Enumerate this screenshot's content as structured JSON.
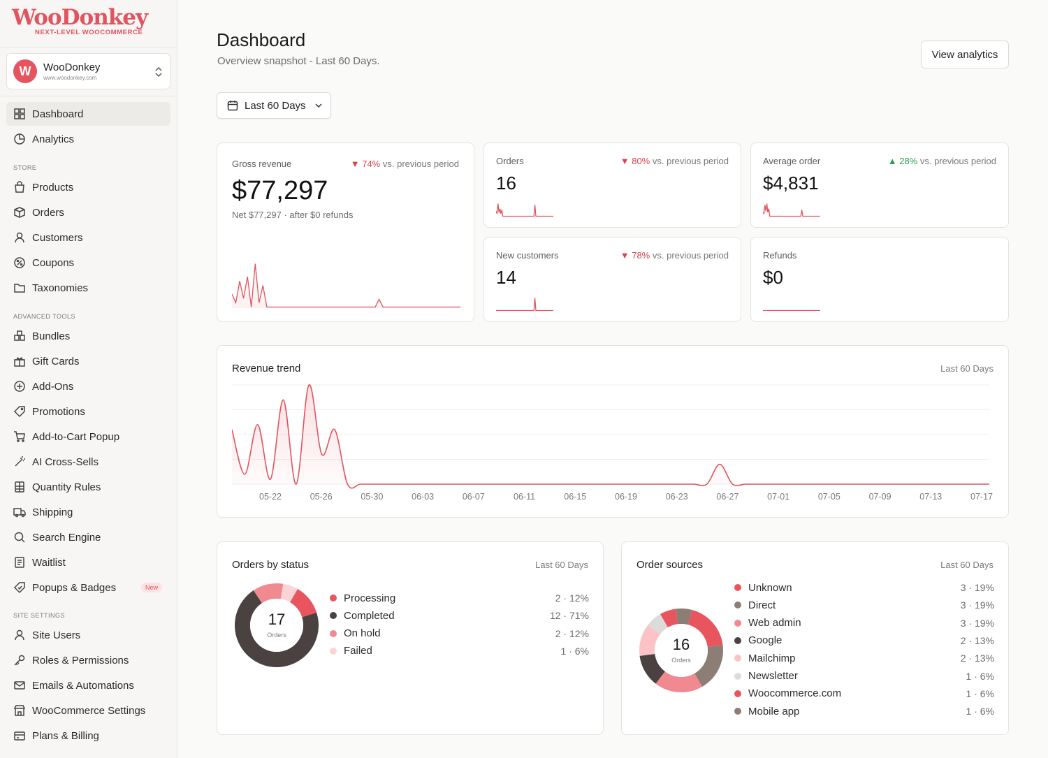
{
  "brand": {
    "logo": "WooDonkey",
    "tagline": "NEXT-LEVEL WOOCOMMERCE",
    "accent": "#e0545f"
  },
  "store": {
    "avatar": "W",
    "name": "WooDonkey",
    "url": "www.woodonkey.com"
  },
  "nav": {
    "top": [
      {
        "label": "Dashboard",
        "icon": "grid-icon",
        "active": true
      },
      {
        "label": "Analytics",
        "icon": "analytics-icon"
      }
    ],
    "store_label": "STORE",
    "store": [
      {
        "label": "Products",
        "icon": "bag-icon"
      },
      {
        "label": "Orders",
        "icon": "box-icon"
      },
      {
        "label": "Customers",
        "icon": "user-icon"
      },
      {
        "label": "Coupons",
        "icon": "percent-icon"
      },
      {
        "label": "Taxonomies",
        "icon": "folder-icon"
      }
    ],
    "tools_label": "ADVANCED TOOLS",
    "tools": [
      {
        "label": "Bundles",
        "icon": "bundle-icon"
      },
      {
        "label": "Gift Cards",
        "icon": "gift-icon"
      },
      {
        "label": "Add-Ons",
        "icon": "plus-circle-icon"
      },
      {
        "label": "Promotions",
        "icon": "tag-icon"
      },
      {
        "label": "Add-to-Cart Popup",
        "icon": "cart-icon"
      },
      {
        "label": "AI Cross-Sells",
        "icon": "wand-icon"
      },
      {
        "label": "Quantity Rules",
        "icon": "calculator-icon"
      },
      {
        "label": "Shipping",
        "icon": "truck-icon"
      },
      {
        "label": "Search Engine",
        "icon": "search-icon"
      },
      {
        "label": "Waitlist",
        "icon": "list-icon"
      },
      {
        "label": "Popups & Badges",
        "icon": "badge-icon",
        "badge": "New"
      }
    ],
    "site_label": "SITE SETTINGS",
    "site": [
      {
        "label": "Site Users",
        "icon": "user-icon"
      },
      {
        "label": "Roles & Permissions",
        "icon": "key-icon"
      },
      {
        "label": "Emails & Automations",
        "icon": "mail-icon"
      },
      {
        "label": "WooCommerce Settings",
        "icon": "store-icon"
      },
      {
        "label": "Plans & Billing",
        "icon": "billing-icon"
      }
    ]
  },
  "header": {
    "title": "Dashboard",
    "subtitle": "Overview snapshot - Last 60 Days.",
    "analytics_button": "View analytics",
    "date_range": "Last 60 Days"
  },
  "kpis": {
    "gross": {
      "label": "Gross revenue",
      "delta_pct": "74%",
      "delta_dir": "down",
      "delta_text": "vs. previous period",
      "value": "$77,297",
      "note": "Net $77,297 · after $0 refunds"
    },
    "orders": {
      "label": "Orders",
      "delta_pct": "80%",
      "delta_dir": "down",
      "delta_text": "vs. previous period",
      "value": "16"
    },
    "avg": {
      "label": "Average order",
      "delta_pct": "28%",
      "delta_dir": "up",
      "delta_text": "vs. previous period",
      "value": "$4,831"
    },
    "newcust": {
      "label": "New customers",
      "delta_pct": "78%",
      "delta_dir": "down",
      "delta_text": "vs. previous period",
      "value": "14"
    },
    "refunds": {
      "label": "Refunds",
      "value": "$0"
    }
  },
  "revenue_trend": {
    "title": "Revenue trend",
    "period": "Last 60 Days"
  },
  "orders_status": {
    "title": "Orders by status",
    "period": "Last 60 Days",
    "total": "17",
    "total_label": "Orders",
    "items": [
      {
        "label": "Processing",
        "value": "2 · 12%",
        "color": "#e9555f",
        "count": 2
      },
      {
        "label": "Completed",
        "value": "12 · 71%",
        "color": "#4a4240",
        "count": 12
      },
      {
        "label": "On hold",
        "value": "2 · 12%",
        "color": "#f08a90",
        "count": 2
      },
      {
        "label": "Failed",
        "value": "1 · 6%",
        "color": "#fad4d6",
        "count": 1
      }
    ]
  },
  "order_sources": {
    "title": "Order sources",
    "period": "Last 60 Days",
    "total": "16",
    "total_label": "Orders",
    "items": [
      {
        "label": "Unknown",
        "value": "3 · 19%",
        "color": "#e9555f",
        "count": 3
      },
      {
        "label": "Direct",
        "value": "3 · 19%",
        "color": "#8c7d75",
        "count": 3
      },
      {
        "label": "Web admin",
        "value": "3 · 19%",
        "color": "#f08a90",
        "count": 3
      },
      {
        "label": "Google",
        "value": "2 · 13%",
        "color": "#4a4240",
        "count": 2
      },
      {
        "label": "Mailchimp",
        "value": "2 · 13%",
        "color": "#fbc3c6",
        "count": 2
      },
      {
        "label": "Newsletter",
        "value": "1 · 6%",
        "color": "#dedad7",
        "count": 1
      },
      {
        "label": "Woocommerce.com",
        "value": "1 · 6%",
        "color": "#e9555f",
        "count": 1
      },
      {
        "label": "Mobile app",
        "value": "1 · 6%",
        "color": "#8c7d75",
        "count": 1
      }
    ]
  },
  "chart_data": {
    "type": "area",
    "categories": [
      "05-22",
      "05-26",
      "05-30",
      "06-03",
      "06-07",
      "06-11",
      "06-15",
      "06-19",
      "06-23",
      "06-27",
      "07-01",
      "07-05",
      "07-09",
      "07-13",
      "07-17"
    ],
    "x": [
      0,
      1,
      2,
      3,
      4,
      5,
      6,
      7,
      8,
      9,
      10,
      11,
      12,
      13,
      14,
      15,
      16,
      17,
      18,
      19,
      20,
      21,
      22,
      23,
      24,
      25,
      26,
      27,
      28,
      29,
      30,
      31,
      32,
      33,
      34,
      35,
      36,
      37,
      38,
      39,
      40,
      41,
      42,
      43,
      44,
      45,
      46,
      47,
      48,
      49,
      50,
      51,
      52,
      53,
      54,
      55,
      56,
      57,
      58,
      59
    ],
    "values": [
      0.55,
      0.1,
      0.6,
      0.05,
      0.85,
      0.0,
      1.0,
      0.3,
      0.55,
      0,
      0,
      0,
      0,
      0,
      0,
      0,
      0,
      0,
      0,
      0,
      0,
      0,
      0,
      0,
      0,
      0,
      0,
      0,
      0,
      0,
      0,
      0,
      0,
      0,
      0,
      0,
      0,
      0,
      0.2,
      0,
      0,
      0,
      0,
      0,
      0,
      0,
      0,
      0,
      0,
      0,
      0,
      0,
      0,
      0,
      0,
      0,
      0,
      0,
      0,
      0
    ],
    "line_color": "#e0545f"
  },
  "sparks": {
    "gross": [
      0.3,
      0.1,
      0.6,
      0.2,
      0.7,
      0.0,
      1.0,
      0.1,
      0.5,
      0,
      0,
      0,
      0,
      0,
      0,
      0,
      0,
      0,
      0,
      0,
      0,
      0,
      0,
      0,
      0,
      0,
      0,
      0,
      0,
      0,
      0,
      0,
      0,
      0,
      0,
      0,
      0,
      0,
      0.18,
      0,
      0,
      0,
      0,
      0,
      0,
      0,
      0,
      0,
      0,
      0,
      0,
      0,
      0,
      0,
      0,
      0,
      0,
      0,
      0,
      0
    ],
    "orders": [
      0.4,
      0.2,
      1.0,
      0.3,
      0.6,
      0.2,
      0.5,
      0,
      0,
      0,
      0,
      0,
      0,
      0,
      0,
      0,
      0,
      0,
      0,
      0,
      0,
      0,
      0,
      0,
      0,
      0,
      0,
      0,
      0,
      0,
      0,
      0,
      0,
      0,
      0,
      0,
      0,
      0,
      0,
      0,
      0.9,
      0,
      0,
      0,
      0,
      0,
      0,
      0,
      0,
      0,
      0,
      0,
      0,
      0,
      0,
      0,
      0,
      0,
      0,
      0
    ],
    "avg": [
      0.3,
      0.2,
      0.9,
      0.4,
      1.0,
      0.3,
      0.6,
      0,
      0,
      0,
      0,
      0,
      0,
      0,
      0,
      0,
      0,
      0,
      0,
      0,
      0,
      0,
      0,
      0,
      0,
      0,
      0,
      0,
      0,
      0,
      0,
      0,
      0,
      0,
      0,
      0,
      0,
      0,
      0,
      0,
      0.5,
      0,
      0,
      0,
      0,
      0,
      0,
      0,
      0,
      0,
      0,
      0,
      0,
      0,
      0,
      0,
      0,
      0,
      0,
      0
    ],
    "newcust": [
      0,
      0,
      0,
      0,
      0,
      0,
      0,
      0,
      0,
      0,
      0,
      0,
      0,
      0,
      0,
      0,
      0,
      0,
      0,
      0,
      0,
      0,
      0,
      0,
      0,
      0,
      0,
      0,
      0,
      0,
      0,
      0,
      0,
      0,
      0,
      0,
      0,
      0,
      0,
      0,
      1.0,
      0,
      0,
      0,
      0,
      0,
      0,
      0,
      0,
      0,
      0,
      0,
      0,
      0,
      0,
      0,
      0,
      0,
      0,
      0
    ],
    "refunds": [
      0,
      0,
      0,
      0,
      0,
      0,
      0,
      0,
      0,
      0,
      0,
      0,
      0,
      0,
      0,
      0,
      0,
      0,
      0,
      0,
      0,
      0,
      0,
      0,
      0,
      0,
      0,
      0,
      0,
      0,
      0,
      0,
      0,
      0,
      0,
      0,
      0,
      0,
      0,
      0,
      0,
      0,
      0,
      0,
      0,
      0,
      0,
      0,
      0,
      0,
      0,
      0,
      0,
      0,
      0,
      0,
      0,
      0,
      0,
      0
    ]
  }
}
